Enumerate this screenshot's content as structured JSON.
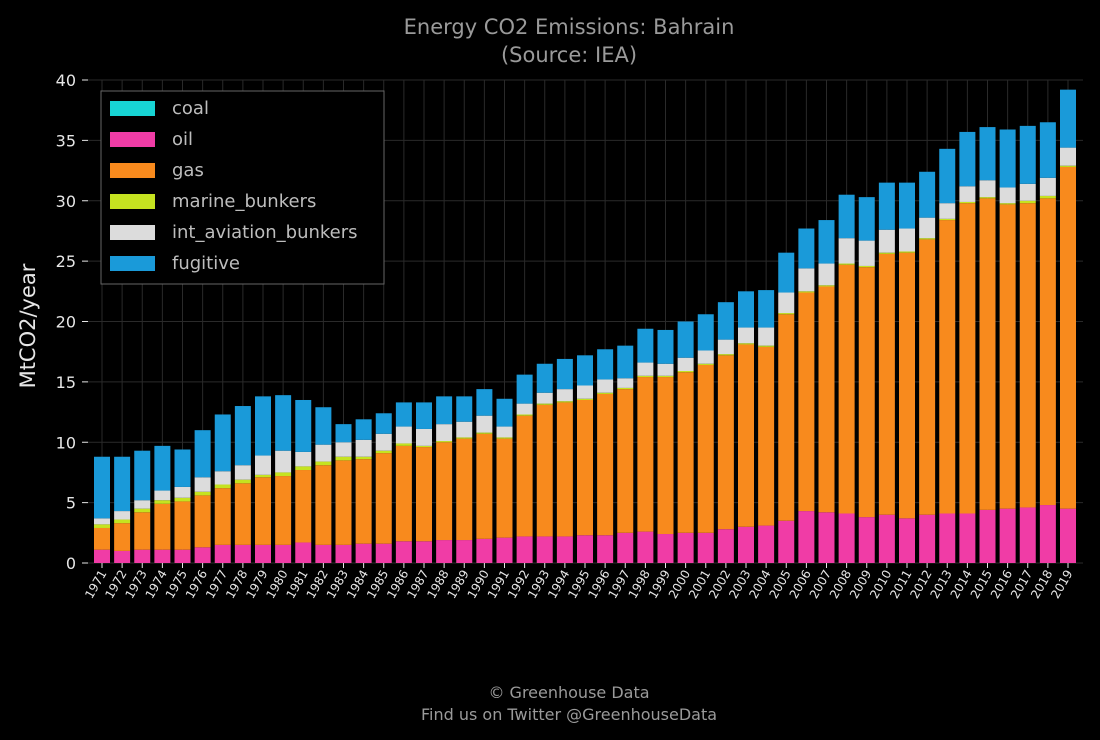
{
  "chart_data": {
    "type": "bar",
    "stacked": true,
    "title": "Energy CO2 Emissions: Bahrain",
    "subtitle": "(Source: IEA)",
    "xlabel": "",
    "ylabel": "MtCO2/year",
    "ylim": [
      0,
      40
    ],
    "yticks": [
      0,
      5,
      10,
      15,
      20,
      25,
      30,
      35,
      40
    ],
    "grid": true,
    "legend_position": "top-left",
    "categories": [
      "1971",
      "1972",
      "1973",
      "1974",
      "1975",
      "1976",
      "1977",
      "1978",
      "1979",
      "1980",
      "1981",
      "1982",
      "1983",
      "1984",
      "1985",
      "1986",
      "1987",
      "1988",
      "1989",
      "1990",
      "1991",
      "1992",
      "1993",
      "1994",
      "1995",
      "1996",
      "1997",
      "1998",
      "1999",
      "2000",
      "2001",
      "2002",
      "2003",
      "2004",
      "2005",
      "2006",
      "2007",
      "2008",
      "2009",
      "2010",
      "2011",
      "2012",
      "2013",
      "2014",
      "2015",
      "2016",
      "2017",
      "2018",
      "2019"
    ],
    "series": [
      {
        "name": "coal",
        "color": "#17d4d4",
        "values": [
          0,
          0,
          0,
          0,
          0,
          0,
          0,
          0,
          0,
          0,
          0,
          0,
          0,
          0,
          0,
          0,
          0,
          0,
          0,
          0,
          0,
          0,
          0,
          0,
          0,
          0,
          0,
          0,
          0,
          0,
          0,
          0,
          0,
          0,
          0,
          0,
          0,
          0,
          0,
          0,
          0,
          0,
          0,
          0,
          0,
          0,
          0,
          0,
          0
        ]
      },
      {
        "name": "oil",
        "color": "#f03ca6",
        "values": [
          1.1,
          1.0,
          1.1,
          1.1,
          1.1,
          1.3,
          1.5,
          1.5,
          1.5,
          1.5,
          1.7,
          1.5,
          1.5,
          1.6,
          1.6,
          1.8,
          1.8,
          1.9,
          1.9,
          2.0,
          2.1,
          2.2,
          2.2,
          2.2,
          2.3,
          2.3,
          2.5,
          2.6,
          2.4,
          2.5,
          2.5,
          2.8,
          3.0,
          3.1,
          3.5,
          4.3,
          4.2,
          4.1,
          3.8,
          4.0,
          3.7,
          4.0,
          4.1,
          4.1,
          4.4,
          4.5,
          4.6,
          4.8,
          4.5
        ]
      },
      {
        "name": "gas",
        "color": "#f88a1d",
        "values": [
          1.8,
          2.3,
          3.1,
          3.8,
          4.0,
          4.3,
          4.7,
          5.1,
          5.6,
          5.7,
          6.0,
          6.6,
          7.0,
          7.0,
          7.5,
          7.9,
          7.8,
          8.1,
          8.4,
          8.7,
          8.2,
          10.0,
          10.9,
          11.1,
          11.2,
          11.7,
          11.9,
          12.8,
          13.0,
          13.3,
          13.9,
          14.4,
          15.1,
          14.8,
          17.1,
          18.1,
          18.7,
          20.6,
          20.7,
          21.6,
          22.0,
          22.8,
          24.3,
          25.7,
          25.8,
          25.2,
          25.2,
          25.4,
          28.3
        ]
      },
      {
        "name": "marine_bunkers",
        "color": "#c5e320",
        "values": [
          0.3,
          0.3,
          0.3,
          0.3,
          0.3,
          0.3,
          0.3,
          0.3,
          0.2,
          0.3,
          0.3,
          0.3,
          0.3,
          0.2,
          0.2,
          0.2,
          0.1,
          0.1,
          0.1,
          0.1,
          0.1,
          0.1,
          0.1,
          0.1,
          0.1,
          0.1,
          0.1,
          0.1,
          0.1,
          0.1,
          0.1,
          0.1,
          0.1,
          0.1,
          0.1,
          0.1,
          0.1,
          0.1,
          0.1,
          0.1,
          0.1,
          0.1,
          0.1,
          0.1,
          0.1,
          0.1,
          0.2,
          0.2,
          0.1
        ]
      },
      {
        "name": "int_aviation_bunkers",
        "color": "#dcdcdc",
        "values": [
          0.5,
          0.7,
          0.7,
          0.8,
          0.9,
          1.2,
          1.1,
          1.2,
          1.6,
          1.8,
          1.2,
          1.4,
          1.2,
          1.4,
          1.4,
          1.4,
          1.4,
          1.4,
          1.3,
          1.4,
          0.9,
          0.9,
          0.9,
          1.0,
          1.1,
          1.1,
          0.8,
          1.1,
          1.0,
          1.1,
          1.1,
          1.2,
          1.3,
          1.5,
          1.7,
          1.9,
          1.8,
          2.1,
          2.1,
          1.9,
          1.9,
          1.7,
          1.3,
          1.3,
          1.4,
          1.3,
          1.4,
          1.5,
          1.5
        ]
      },
      {
        "name": "fugitive",
        "color": "#1a9ad9",
        "values": [
          5.1,
          4.5,
          4.1,
          3.7,
          3.1,
          3.9,
          4.7,
          4.9,
          4.9,
          4.6,
          4.3,
          3.1,
          1.5,
          1.7,
          1.7,
          2.0,
          2.2,
          2.3,
          2.1,
          2.2,
          2.3,
          2.4,
          2.4,
          2.5,
          2.5,
          2.5,
          2.7,
          2.8,
          2.8,
          3.0,
          3.0,
          3.1,
          3.0,
          3.1,
          3.3,
          3.3,
          3.6,
          3.6,
          3.6,
          3.9,
          3.8,
          3.8,
          4.5,
          4.5,
          4.4,
          4.8,
          4.8,
          4.6,
          4.8
        ]
      }
    ]
  },
  "footer": {
    "copyright": "© Greenhouse Data",
    "twitter": "Find us on Twitter @GreenhouseData"
  }
}
